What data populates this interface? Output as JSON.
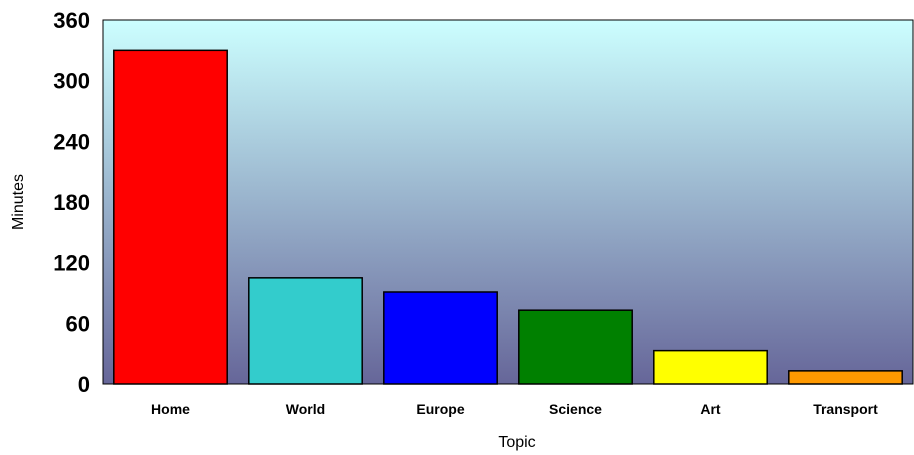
{
  "chart_data": {
    "type": "bar",
    "title": "",
    "xlabel": "Topic",
    "ylabel": "Minutes",
    "categories": [
      "Home",
      "World",
      "Europe",
      "Science",
      "Art",
      "Transport"
    ],
    "values": [
      330,
      105,
      91,
      73,
      33,
      13
    ],
    "ylim": [
      0,
      360
    ],
    "yticks": [
      "0",
      "60",
      "120",
      "180",
      "240",
      "300",
      "360"
    ],
    "grid": false,
    "legend": "none",
    "bar_colors": [
      "#ff0000",
      "#33cccc",
      "#0000ff",
      "#008000",
      "#ffff00",
      "#ff9900"
    ],
    "plot_background": {
      "top": "#ccffff",
      "bottom": "#666699"
    }
  }
}
